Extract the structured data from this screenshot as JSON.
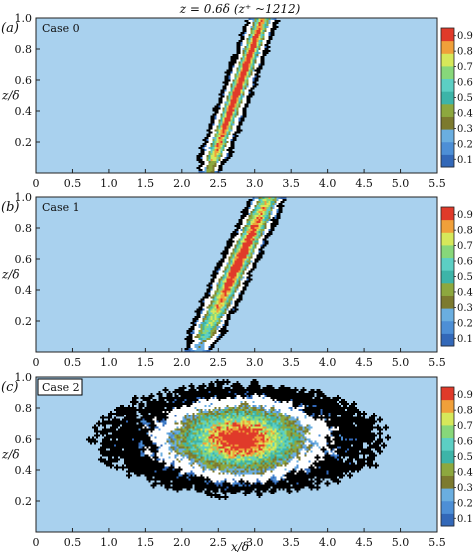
{
  "figure": {
    "title": "z = 0.6δ (z⁺ ~1212)",
    "xlabel": "x/δ",
    "ylabel": "z/δ"
  },
  "colors": {
    "background": "#a9d1ee",
    "colormap": [
      "#3268b8",
      "#4d8fd6",
      "#6aaee0",
      "#7c7a2e",
      "#8da83e",
      "#3db4a8",
      "#5ccfc4",
      "#87d77a",
      "#d6e85a",
      "#f0a03a",
      "#e03a2a"
    ],
    "black_contour": "#000000",
    "white_contour": "#ffffff"
  },
  "chart_data": [
    {
      "type": "heatmap",
      "panel": "(a)",
      "case_label": "Case 0",
      "x_ticks": [
        "0",
        "0.5",
        "1.0",
        "1.5",
        "2.0",
        "2.5",
        "3.0",
        "3.5",
        "4.0",
        "4.5",
        "5.0",
        "5.5"
      ],
      "y_ticks": [
        "0.2",
        "0.4",
        "0.6",
        "0.8",
        "1.0"
      ],
      "colorbar_ticks": [
        "0.1",
        "0.2",
        "0.3",
        "0.4",
        "0.5",
        "0.6",
        "0.7",
        "0.8",
        "0.9"
      ],
      "xlim": [
        0,
        5.5
      ],
      "ylim": [
        0,
        1.0
      ],
      "clim": [
        0.05,
        0.95
      ],
      "peak": {
        "x": 2.8,
        "z": 0.58,
        "value": 0.95
      },
      "spread": {
        "along": 1.2,
        "across": 0.16,
        "tilt_deg": 32,
        "outer_along": 2.9,
        "outer_across": 0.34
      },
      "noise": 0.08
    },
    {
      "type": "heatmap",
      "panel": "(b)",
      "case_label": "Case 1",
      "x_ticks": [
        "0",
        "0.5",
        "1.0",
        "1.5",
        "2.0",
        "2.5",
        "3.0",
        "3.5",
        "4.0",
        "4.5",
        "5.0",
        "5.5"
      ],
      "y_ticks": [
        "0.2",
        "0.4",
        "0.6",
        "0.8",
        "1.0"
      ],
      "colorbar_ticks": [
        "0.1",
        "0.2",
        "0.3",
        "0.4",
        "0.5",
        "0.6",
        "0.7",
        "0.8",
        "0.9"
      ],
      "xlim": [
        0,
        5.5
      ],
      "ylim": [
        0,
        1.0
      ],
      "clim": [
        0.05,
        0.95
      ],
      "peak": {
        "x": 2.8,
        "z": 0.6,
        "value": 0.95
      },
      "spread": {
        "along": 1.0,
        "across": 0.18,
        "tilt_deg": 25,
        "outer_along": 2.6,
        "outer_across": 0.3
      },
      "noise": 0.12
    },
    {
      "type": "heatmap",
      "panel": "(c)",
      "case_label": "Case 2",
      "x_ticks": [
        "0",
        "0.5",
        "1.0",
        "1.5",
        "2.0",
        "2.5",
        "3.0",
        "3.5",
        "4.0",
        "4.5",
        "5.0",
        "5.5"
      ],
      "y_ticks": [
        "0.2",
        "0.4",
        "0.6",
        "0.8",
        "1.0"
      ],
      "colorbar_ticks": [
        "0.1",
        "0.2",
        "0.3",
        "0.4",
        "0.5",
        "0.6",
        "0.7",
        "0.8",
        "0.9"
      ],
      "xlim": [
        0,
        5.5
      ],
      "ylim": [
        0,
        1.0
      ],
      "clim": [
        0.05,
        0.95
      ],
      "peak": {
        "x": 2.8,
        "z": 0.6,
        "value": 0.9
      },
      "spread": {
        "along": 1.1,
        "across": 0.28,
        "tilt_deg": 0,
        "outer_along": 2.4,
        "outer_across": 0.42
      },
      "noise": 0.2
    }
  ]
}
